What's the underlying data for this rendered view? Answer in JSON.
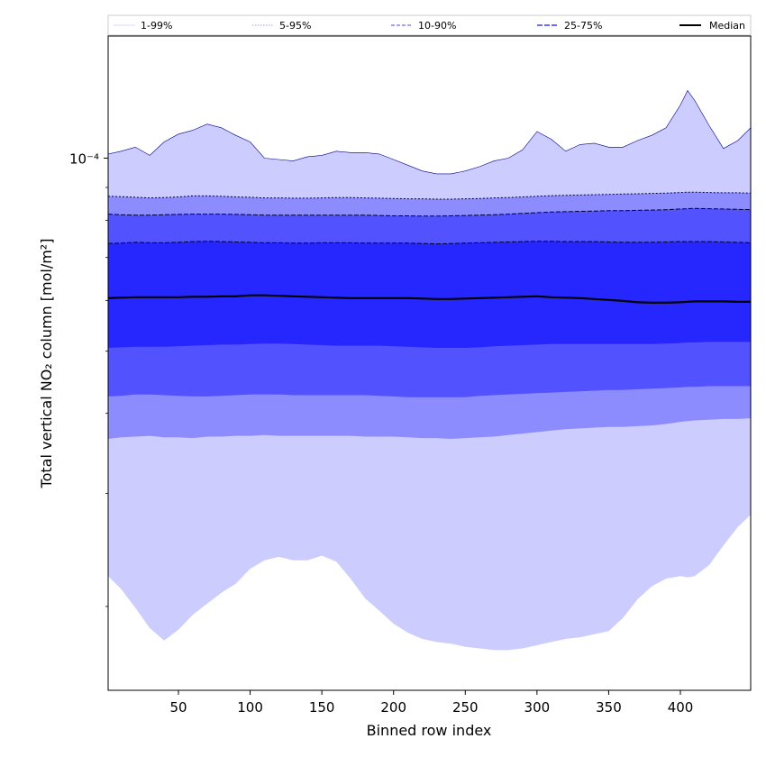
{
  "chart_data": {
    "type": "area",
    "xlabel": "Binned row index",
    "ylabel": "Total vertical NO₂ column [mol/m²]",
    "y_scale": "log",
    "xlim": [
      1,
      449
    ],
    "ylim": [
      1.48e-05,
      0.000155
    ],
    "x_ticks": [
      50,
      100,
      150,
      200,
      250,
      300,
      350,
      400
    ],
    "y_tick_major_label": "10⁻⁴",
    "legend": {
      "placement": "top",
      "entries": [
        "1-99%",
        "5-95%",
        "10-90%",
        "25-75%",
        "Median"
      ]
    },
    "colors": {
      "band_1_99": "#ccccff",
      "band_5_95": "#8c8cff",
      "band_10_90": "#5252ff",
      "band_25_75": "#2626ff",
      "median": "#000000",
      "boundary_line": "#00008b"
    },
    "x": [
      1,
      10,
      20,
      30,
      40,
      50,
      60,
      70,
      80,
      90,
      100,
      110,
      120,
      130,
      140,
      150,
      160,
      170,
      180,
      190,
      200,
      210,
      220,
      230,
      240,
      250,
      260,
      270,
      280,
      290,
      300,
      310,
      320,
      330,
      340,
      350,
      360,
      370,
      380,
      390,
      400,
      405,
      410,
      420,
      430,
      440,
      449
    ],
    "series": [
      {
        "name": "1-99%",
        "lower": [
          2.23e-05,
          2.13e-05,
          1.99e-05,
          1.85e-05,
          1.77e-05,
          1.84e-05,
          1.94e-05,
          2.02e-05,
          2.1e-05,
          2.17e-05,
          2.29e-05,
          2.36e-05,
          2.39e-05,
          2.36e-05,
          2.36e-05,
          2.4e-05,
          2.35e-05,
          2.21e-05,
          2.06e-05,
          1.97e-05,
          1.88e-05,
          1.82e-05,
          1.78e-05,
          1.76e-05,
          1.75e-05,
          1.73e-05,
          1.72e-05,
          1.71e-05,
          1.71e-05,
          1.72e-05,
          1.74e-05,
          1.76e-05,
          1.78e-05,
          1.79e-05,
          1.81e-05,
          1.83e-05,
          1.92e-05,
          2.05e-05,
          2.15e-05,
          2.21e-05,
          2.23e-05,
          2.22e-05,
          2.23e-05,
          2.32e-05,
          2.49e-05,
          2.66e-05,
          2.78e-05
        ],
        "upper": [
          0.0001015,
          0.0001025,
          0.000104,
          0.000101,
          0.000106,
          0.000109,
          0.0001105,
          0.000113,
          0.0001115,
          0.0001085,
          0.000106,
          0.0001,
          9.95e-05,
          9.9e-05,
          0.0001005,
          0.000101,
          0.0001025,
          0.000102,
          0.000102,
          0.0001015,
          9.95e-05,
          9.75e-05,
          9.55e-05,
          9.45e-05,
          9.45e-05,
          9.55e-05,
          9.7e-05,
          9.9e-05,
          0.0001,
          0.000103,
          0.00011,
          0.000107,
          0.0001025,
          0.000105,
          0.0001055,
          0.000104,
          0.000104,
          0.0001065,
          0.0001085,
          0.0001115,
          0.000121,
          0.0001275,
          0.000123,
          0.0001125,
          0.0001035,
          0.0001065,
          0.0001115
        ]
      },
      {
        "name": "5-95%",
        "lower": [
          3.65e-05,
          3.67e-05,
          3.68e-05,
          3.69e-05,
          3.67e-05,
          3.67e-05,
          3.66e-05,
          3.68e-05,
          3.68e-05,
          3.69e-05,
          3.69e-05,
          3.7e-05,
          3.69e-05,
          3.69e-05,
          3.69e-05,
          3.69e-05,
          3.69e-05,
          3.69e-05,
          3.68e-05,
          3.68e-05,
          3.68e-05,
          3.67e-05,
          3.66e-05,
          3.66e-05,
          3.65e-05,
          3.66e-05,
          3.67e-05,
          3.68e-05,
          3.7e-05,
          3.72e-05,
          3.74e-05,
          3.76e-05,
          3.78e-05,
          3.79e-05,
          3.8e-05,
          3.81e-05,
          3.81e-05,
          3.82e-05,
          3.83e-05,
          3.85e-05,
          3.88e-05,
          3.89e-05,
          3.9e-05,
          3.91e-05,
          3.92e-05,
          3.92e-05,
          3.93e-05
        ],
        "upper": [
          8.72e-05,
          8.71e-05,
          8.69e-05,
          8.67e-05,
          8.68e-05,
          8.7e-05,
          8.73e-05,
          8.73e-05,
          8.72e-05,
          8.7e-05,
          8.69e-05,
          8.67e-05,
          8.67e-05,
          8.66e-05,
          8.66e-05,
          8.67e-05,
          8.68e-05,
          8.68e-05,
          8.67e-05,
          8.66e-05,
          8.65e-05,
          8.64e-05,
          8.64e-05,
          8.63e-05,
          8.63e-05,
          8.64e-05,
          8.65e-05,
          8.67e-05,
          8.68e-05,
          8.7e-05,
          8.72e-05,
          8.74e-05,
          8.75e-05,
          8.76e-05,
          8.77e-05,
          8.78e-05,
          8.79e-05,
          8.8e-05,
          8.81e-05,
          8.82e-05,
          8.84e-05,
          8.85e-05,
          8.85e-05,
          8.84e-05,
          8.83e-05,
          8.83e-05,
          8.82e-05
        ]
      },
      {
        "name": "10-90%",
        "lower": [
          4.25e-05,
          4.26e-05,
          4.28e-05,
          4.28e-05,
          4.27e-05,
          4.26e-05,
          4.25e-05,
          4.25e-05,
          4.26e-05,
          4.27e-05,
          4.28e-05,
          4.28e-05,
          4.28e-05,
          4.27e-05,
          4.27e-05,
          4.27e-05,
          4.27e-05,
          4.27e-05,
          4.27e-05,
          4.26e-05,
          4.25e-05,
          4.24e-05,
          4.24e-05,
          4.24e-05,
          4.24e-05,
          4.24e-05,
          4.26e-05,
          4.27e-05,
          4.28e-05,
          4.29e-05,
          4.3e-05,
          4.31e-05,
          4.32e-05,
          4.33e-05,
          4.34e-05,
          4.35e-05,
          4.35e-05,
          4.36e-05,
          4.37e-05,
          4.38e-05,
          4.39e-05,
          4.4e-05,
          4.4e-05,
          4.41e-05,
          4.41e-05,
          4.41e-05,
          4.41e-05
        ],
        "upper": [
          8.18e-05,
          8.16e-05,
          8.15e-05,
          8.15e-05,
          8.16e-05,
          8.17e-05,
          8.18e-05,
          8.18e-05,
          8.18e-05,
          8.17e-05,
          8.16e-05,
          8.15e-05,
          8.15e-05,
          8.15e-05,
          8.15e-05,
          8.15e-05,
          8.15e-05,
          8.15e-05,
          8.15e-05,
          8.14e-05,
          8.13e-05,
          8.13e-05,
          8.12e-05,
          8.12e-05,
          8.13e-05,
          8.14e-05,
          8.15e-05,
          8.16e-05,
          8.18e-05,
          8.2e-05,
          8.22e-05,
          8.24e-05,
          8.25e-05,
          8.26e-05,
          8.27e-05,
          8.28e-05,
          8.28e-05,
          8.29e-05,
          8.3e-05,
          8.31e-05,
          8.33e-05,
          8.34e-05,
          8.35e-05,
          8.34e-05,
          8.33e-05,
          8.32e-05,
          8.31e-05
        ]
      },
      {
        "name": "25-75%",
        "lower": [
          5.06e-05,
          5.07e-05,
          5.08e-05,
          5.08e-05,
          5.08e-05,
          5.09e-05,
          5.1e-05,
          5.11e-05,
          5.12e-05,
          5.12e-05,
          5.13e-05,
          5.14e-05,
          5.14e-05,
          5.13e-05,
          5.12e-05,
          5.11e-05,
          5.1e-05,
          5.1e-05,
          5.1e-05,
          5.1e-05,
          5.09e-05,
          5.08e-05,
          5.07e-05,
          5.06e-05,
          5.06e-05,
          5.06e-05,
          5.07e-05,
          5.09e-05,
          5.1e-05,
          5.11e-05,
          5.12e-05,
          5.13e-05,
          5.13e-05,
          5.13e-05,
          5.13e-05,
          5.13e-05,
          5.13e-05,
          5.13e-05,
          5.13e-05,
          5.14e-05,
          5.15e-05,
          5.16e-05,
          5.16e-05,
          5.17e-05,
          5.17e-05,
          5.17e-05,
          5.17e-05
        ],
        "upper": [
          7.36e-05,
          7.37e-05,
          7.39e-05,
          7.38e-05,
          7.38e-05,
          7.39e-05,
          7.41e-05,
          7.42e-05,
          7.41e-05,
          7.4e-05,
          7.39e-05,
          7.38e-05,
          7.38e-05,
          7.37e-05,
          7.37e-05,
          7.38e-05,
          7.38e-05,
          7.38e-05,
          7.37e-05,
          7.37e-05,
          7.37e-05,
          7.37e-05,
          7.36e-05,
          7.35e-05,
          7.36e-05,
          7.37e-05,
          7.38e-05,
          7.39e-05,
          7.4e-05,
          7.41e-05,
          7.42e-05,
          7.42e-05,
          7.41e-05,
          7.41e-05,
          7.41e-05,
          7.4e-05,
          7.39e-05,
          7.39e-05,
          7.39e-05,
          7.4e-05,
          7.41e-05,
          7.41e-05,
          7.41e-05,
          7.41e-05,
          7.4e-05,
          7.39e-05,
          7.38e-05
        ]
      },
      {
        "name": "Median",
        "values": [
          6.05e-05,
          6.06e-05,
          6.07e-05,
          6.07e-05,
          6.07e-05,
          6.07e-05,
          6.08e-05,
          6.08e-05,
          6.09e-05,
          6.09e-05,
          6.11e-05,
          6.11e-05,
          6.1e-05,
          6.09e-05,
          6.08e-05,
          6.07e-05,
          6.06e-05,
          6.05e-05,
          6.05e-05,
          6.05e-05,
          6.05e-05,
          6.05e-05,
          6.04e-05,
          6.03e-05,
          6.03e-05,
          6.04e-05,
          6.05e-05,
          6.06e-05,
          6.07e-05,
          6.08e-05,
          6.09e-05,
          6.07e-05,
          6.06e-05,
          6.05e-05,
          6.03e-05,
          6.01e-05,
          5.99e-05,
          5.96e-05,
          5.95e-05,
          5.95e-05,
          5.96e-05,
          5.97e-05,
          5.98e-05,
          5.98e-05,
          5.98e-05,
          5.97e-05,
          5.97e-05
        ]
      }
    ]
  }
}
